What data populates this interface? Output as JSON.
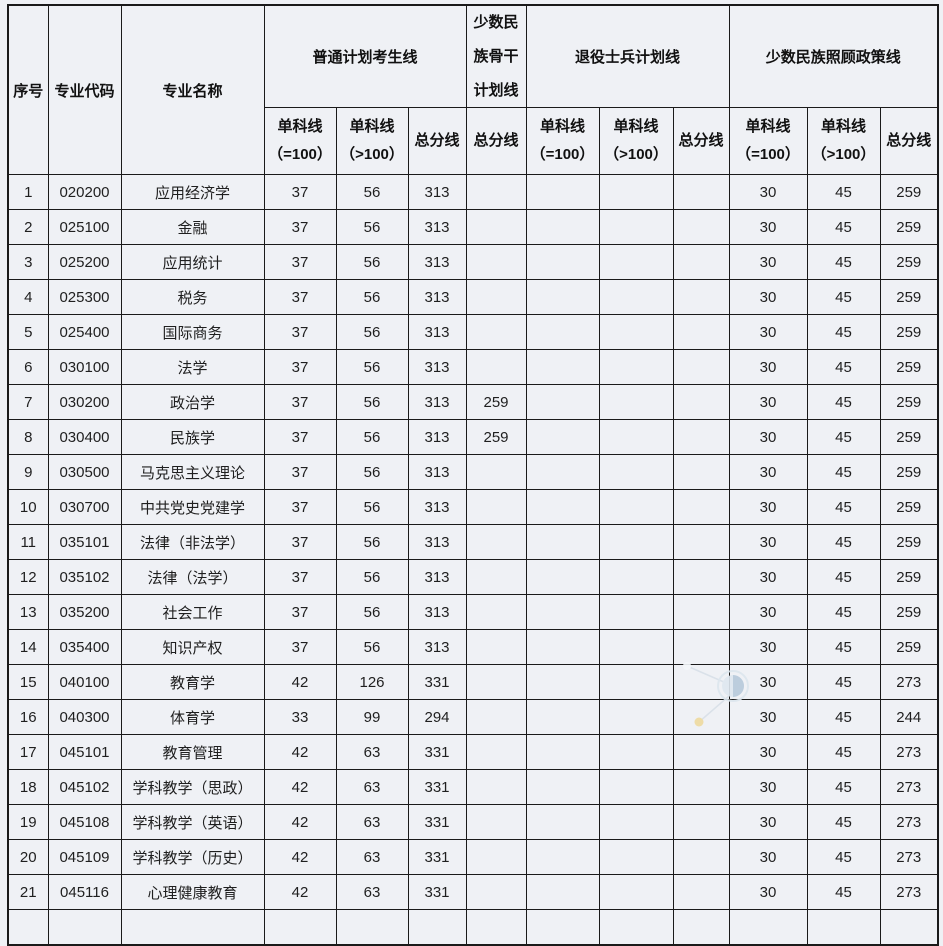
{
  "table": {
    "header": {
      "no": "序号",
      "code": "专业代码",
      "name": "专业名称",
      "groups": {
        "general": "普通计划考生线",
        "backbone": "少数民族骨干计划线",
        "veteran": "退役士兵计划线",
        "policy": "少数民族照顾政策线"
      },
      "sub": {
        "single_eq": "单科线\n（=100）",
        "single_gt": "单科线\n（>100）",
        "total": "总分线"
      }
    },
    "rows": [
      {
        "no": "1",
        "code": "020200",
        "name": "应用经济学",
        "g_eq": "37",
        "g_gt": "56",
        "g_total": "313",
        "mb_total": "",
        "v_eq": "",
        "v_gt": "",
        "v_total": "",
        "p_eq": "30",
        "p_gt": "45",
        "p_total": "259"
      },
      {
        "no": "2",
        "code": "025100",
        "name": "金融",
        "g_eq": "37",
        "g_gt": "56",
        "g_total": "313",
        "mb_total": "",
        "v_eq": "",
        "v_gt": "",
        "v_total": "",
        "p_eq": "30",
        "p_gt": "45",
        "p_total": "259"
      },
      {
        "no": "3",
        "code": "025200",
        "name": "应用统计",
        "g_eq": "37",
        "g_gt": "56",
        "g_total": "313",
        "mb_total": "",
        "v_eq": "",
        "v_gt": "",
        "v_total": "",
        "p_eq": "30",
        "p_gt": "45",
        "p_total": "259"
      },
      {
        "no": "4",
        "code": "025300",
        "name": "税务",
        "g_eq": "37",
        "g_gt": "56",
        "g_total": "313",
        "mb_total": "",
        "v_eq": "",
        "v_gt": "",
        "v_total": "",
        "p_eq": "30",
        "p_gt": "45",
        "p_total": "259"
      },
      {
        "no": "5",
        "code": "025400",
        "name": "国际商务",
        "g_eq": "37",
        "g_gt": "56",
        "g_total": "313",
        "mb_total": "",
        "v_eq": "",
        "v_gt": "",
        "v_total": "",
        "p_eq": "30",
        "p_gt": "45",
        "p_total": "259"
      },
      {
        "no": "6",
        "code": "030100",
        "name": "法学",
        "g_eq": "37",
        "g_gt": "56",
        "g_total": "313",
        "mb_total": "",
        "v_eq": "",
        "v_gt": "",
        "v_total": "",
        "p_eq": "30",
        "p_gt": "45",
        "p_total": "259"
      },
      {
        "no": "7",
        "code": "030200",
        "name": "政治学",
        "g_eq": "37",
        "g_gt": "56",
        "g_total": "313",
        "mb_total": "259",
        "v_eq": "",
        "v_gt": "",
        "v_total": "",
        "p_eq": "30",
        "p_gt": "45",
        "p_total": "259"
      },
      {
        "no": "8",
        "code": "030400",
        "name": "民族学",
        "g_eq": "37",
        "g_gt": "56",
        "g_total": "313",
        "mb_total": "259",
        "v_eq": "",
        "v_gt": "",
        "v_total": "",
        "p_eq": "30",
        "p_gt": "45",
        "p_total": "259"
      },
      {
        "no": "9",
        "code": "030500",
        "name": "马克思主义理论",
        "g_eq": "37",
        "g_gt": "56",
        "g_total": "313",
        "mb_total": "",
        "v_eq": "",
        "v_gt": "",
        "v_total": "",
        "p_eq": "30",
        "p_gt": "45",
        "p_total": "259"
      },
      {
        "no": "10",
        "code": "030700",
        "name": "中共党史党建学",
        "g_eq": "37",
        "g_gt": "56",
        "g_total": "313",
        "mb_total": "",
        "v_eq": "",
        "v_gt": "",
        "v_total": "",
        "p_eq": "30",
        "p_gt": "45",
        "p_total": "259"
      },
      {
        "no": "11",
        "code": "035101",
        "name": "法律（非法学）",
        "g_eq": "37",
        "g_gt": "56",
        "g_total": "313",
        "mb_total": "",
        "v_eq": "",
        "v_gt": "",
        "v_total": "",
        "p_eq": "30",
        "p_gt": "45",
        "p_total": "259"
      },
      {
        "no": "12",
        "code": "035102",
        "name": "法律（法学）",
        "g_eq": "37",
        "g_gt": "56",
        "g_total": "313",
        "mb_total": "",
        "v_eq": "",
        "v_gt": "",
        "v_total": "",
        "p_eq": "30",
        "p_gt": "45",
        "p_total": "259"
      },
      {
        "no": "13",
        "code": "035200",
        "name": "社会工作",
        "g_eq": "37",
        "g_gt": "56",
        "g_total": "313",
        "mb_total": "",
        "v_eq": "",
        "v_gt": "",
        "v_total": "",
        "p_eq": "30",
        "p_gt": "45",
        "p_total": "259"
      },
      {
        "no": "14",
        "code": "035400",
        "name": "知识产权",
        "g_eq": "37",
        "g_gt": "56",
        "g_total": "313",
        "mb_total": "",
        "v_eq": "",
        "v_gt": "",
        "v_total": "",
        "p_eq": "30",
        "p_gt": "45",
        "p_total": "259"
      },
      {
        "no": "15",
        "code": "040100",
        "name": "教育学",
        "g_eq": "42",
        "g_gt": "126",
        "g_total": "331",
        "mb_total": "",
        "v_eq": "",
        "v_gt": "",
        "v_total": "",
        "p_eq": "30",
        "p_gt": "45",
        "p_total": "273"
      },
      {
        "no": "16",
        "code": "040300",
        "name": "体育学",
        "g_eq": "33",
        "g_gt": "99",
        "g_total": "294",
        "mb_total": "",
        "v_eq": "",
        "v_gt": "",
        "v_total": "",
        "p_eq": "30",
        "p_gt": "45",
        "p_total": "244"
      },
      {
        "no": "17",
        "code": "045101",
        "name": "教育管理",
        "g_eq": "42",
        "g_gt": "63",
        "g_total": "331",
        "mb_total": "",
        "v_eq": "",
        "v_gt": "",
        "v_total": "",
        "p_eq": "30",
        "p_gt": "45",
        "p_total": "273"
      },
      {
        "no": "18",
        "code": "045102",
        "name": "学科教学（思政）",
        "g_eq": "42",
        "g_gt": "63",
        "g_total": "331",
        "mb_total": "",
        "v_eq": "",
        "v_gt": "",
        "v_total": "",
        "p_eq": "30",
        "p_gt": "45",
        "p_total": "273"
      },
      {
        "no": "19",
        "code": "045108",
        "name": "学科教学（英语）",
        "g_eq": "42",
        "g_gt": "63",
        "g_total": "331",
        "mb_total": "",
        "v_eq": "",
        "v_gt": "",
        "v_total": "",
        "p_eq": "30",
        "p_gt": "45",
        "p_total": "273"
      },
      {
        "no": "20",
        "code": "045109",
        "name": "学科教学（历史）",
        "g_eq": "42",
        "g_gt": "63",
        "g_total": "331",
        "mb_total": "",
        "v_eq": "",
        "v_gt": "",
        "v_total": "",
        "p_eq": "30",
        "p_gt": "45",
        "p_total": "273"
      },
      {
        "no": "21",
        "code": "045116",
        "name": "心理健康教育",
        "g_eq": "42",
        "g_gt": "63",
        "g_total": "331",
        "mb_total": "",
        "v_eq": "",
        "v_gt": "",
        "v_total": "",
        "p_eq": "30",
        "p_gt": "45",
        "p_total": "273"
      }
    ]
  },
  "watermark": {
    "ring_stroke": "#dde6ee",
    "circle_light": "#dfe8f0",
    "circle_dark": "#b7cadb",
    "small_circle_fill": "#f4f7fa",
    "small_circle_stroke": "#c9d6e2",
    "dot_fill": "#eeda9f",
    "line_color": "#d8e0e8"
  }
}
